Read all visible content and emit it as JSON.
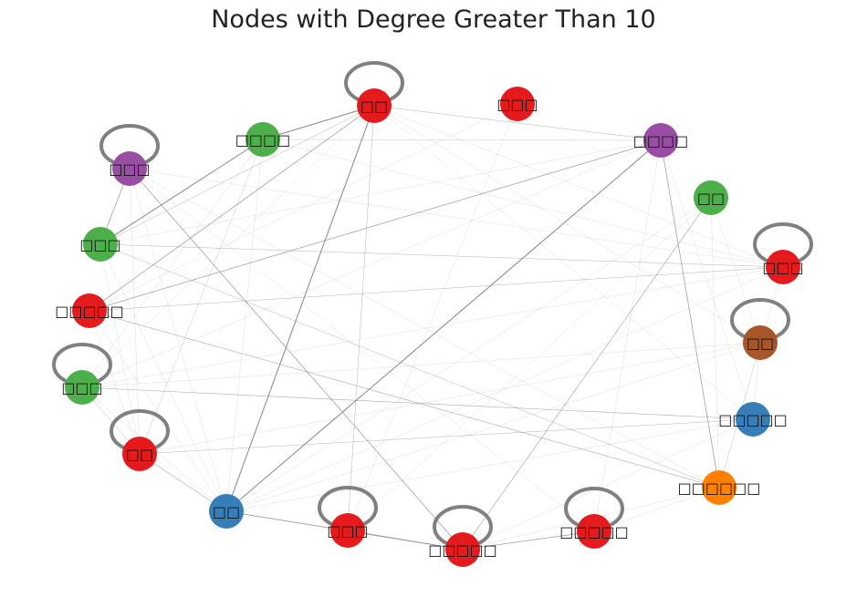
{
  "title": "Nodes with Degree Greater Than 10",
  "colors": {
    "red": "#e41a1c",
    "blue": "#377eb8",
    "green": "#4daf4a",
    "purple": "#984ea3",
    "orange": "#ff7f00",
    "brown": "#a65628",
    "edge": "#808080"
  },
  "nodes": [
    {
      "id": "n1",
      "label": "□□",
      "color": "red",
      "self_loop": true
    },
    {
      "id": "n2",
      "label": "□□□",
      "color": "red",
      "self_loop": false
    },
    {
      "id": "n3",
      "label": "□□□□",
      "color": "green",
      "self_loop": false
    },
    {
      "id": "n4",
      "label": "□□□□",
      "color": "purple",
      "self_loop": false
    },
    {
      "id": "n5",
      "label": "□□□",
      "color": "purple",
      "self_loop": true
    },
    {
      "id": "n6",
      "label": "□□",
      "color": "green",
      "self_loop": false
    },
    {
      "id": "n7",
      "label": "□□□",
      "color": "green",
      "self_loop": false
    },
    {
      "id": "n8",
      "label": "□□□",
      "color": "red",
      "self_loop": true
    },
    {
      "id": "n9",
      "label": "□□□□□",
      "color": "red",
      "self_loop": false
    },
    {
      "id": "n10",
      "label": "□□",
      "color": "brown",
      "self_loop": true
    },
    {
      "id": "n11",
      "label": "□□□",
      "color": "green",
      "self_loop": true
    },
    {
      "id": "n12",
      "label": "□□□□□",
      "color": "blue",
      "self_loop": false
    },
    {
      "id": "n13",
      "label": "□□",
      "color": "red",
      "self_loop": true
    },
    {
      "id": "n14",
      "label": "□□□□□□",
      "color": "orange",
      "self_loop": false
    },
    {
      "id": "n15",
      "label": "□□",
      "color": "blue",
      "self_loop": false
    },
    {
      "id": "n16",
      "label": "□□□",
      "color": "red",
      "self_loop": true
    },
    {
      "id": "n17",
      "label": "□□□□□",
      "color": "red",
      "self_loop": true
    },
    {
      "id": "n18",
      "label": "□□□□□",
      "color": "red",
      "self_loop": true
    }
  ],
  "edges": [
    {
      "source": "n1",
      "target": "n3",
      "weight": 2
    },
    {
      "source": "n1",
      "target": "n15",
      "weight": 2
    },
    {
      "source": "n1",
      "target": "n9",
      "weight": 1.5
    },
    {
      "source": "n1",
      "target": "n4",
      "weight": 1
    },
    {
      "source": "n1",
      "target": "n7",
      "weight": 1
    },
    {
      "source": "n1",
      "target": "n16",
      "weight": 1
    },
    {
      "source": "n1",
      "target": "n11",
      "weight": 0.6
    },
    {
      "source": "n1",
      "target": "n10",
      "weight": 0.5
    },
    {
      "source": "n1",
      "target": "n12",
      "weight": 0.5
    },
    {
      "source": "n1",
      "target": "n8",
      "weight": 0.5
    },
    {
      "source": "n2",
      "target": "n16",
      "weight": 0.5
    },
    {
      "source": "n2",
      "target": "n9",
      "weight": 0.5
    },
    {
      "source": "n3",
      "target": "n7",
      "weight": 2
    },
    {
      "source": "n3",
      "target": "n4",
      "weight": 0.8
    },
    {
      "source": "n3",
      "target": "n13",
      "weight": 0.8
    },
    {
      "source": "n3",
      "target": "n11",
      "weight": 0.6
    },
    {
      "source": "n3",
      "target": "n8",
      "weight": 0.5
    },
    {
      "source": "n3",
      "target": "n15",
      "weight": 0.6
    },
    {
      "source": "n4",
      "target": "n15",
      "weight": 2
    },
    {
      "source": "n4",
      "target": "n9",
      "weight": 1.5
    },
    {
      "source": "n4",
      "target": "n14",
      "weight": 1.5
    },
    {
      "source": "n4",
      "target": "n7",
      "weight": 0.6
    },
    {
      "source": "n4",
      "target": "n11",
      "weight": 0.6
    },
    {
      "source": "n4",
      "target": "n18",
      "weight": 0.6
    },
    {
      "source": "n4",
      "target": "n12",
      "weight": 0.5
    },
    {
      "source": "n5",
      "target": "n7",
      "weight": 1.5
    },
    {
      "source": "n5",
      "target": "n17",
      "weight": 1.5
    },
    {
      "source": "n5",
      "target": "n13",
      "weight": 0.6
    },
    {
      "source": "n5",
      "target": "n15",
      "weight": 0.6
    },
    {
      "source": "n5",
      "target": "n8",
      "weight": 0.5
    },
    {
      "source": "n5",
      "target": "n14",
      "weight": 0.5
    },
    {
      "source": "n5",
      "target": "n18",
      "weight": 0.5
    },
    {
      "source": "n6",
      "target": "n17",
      "weight": 1.2
    },
    {
      "source": "n6",
      "target": "n15",
      "weight": 0.6
    },
    {
      "source": "n6",
      "target": "n10",
      "weight": 0.5
    },
    {
      "source": "n6",
      "target": "n14",
      "weight": 0.5
    },
    {
      "source": "n7",
      "target": "n8",
      "weight": 1
    },
    {
      "source": "n7",
      "target": "n14",
      "weight": 1
    },
    {
      "source": "n7",
      "target": "n13",
      "weight": 0.6
    },
    {
      "source": "n7",
      "target": "n15",
      "weight": 0.6
    },
    {
      "source": "n8",
      "target": "n9",
      "weight": 1
    },
    {
      "source": "n8",
      "target": "n14",
      "weight": 0.6
    },
    {
      "source": "n8",
      "target": "n11",
      "weight": 0.5
    },
    {
      "source": "n8",
      "target": "n15",
      "weight": 0.5
    },
    {
      "source": "n9",
      "target": "n14",
      "weight": 1.2
    },
    {
      "source": "n9",
      "target": "n13",
      "weight": 0.6
    },
    {
      "source": "n9",
      "target": "n15",
      "weight": 0.6
    },
    {
      "source": "n10",
      "target": "n14",
      "weight": 0.6
    },
    {
      "source": "n10",
      "target": "n13",
      "weight": 0.6
    },
    {
      "source": "n10",
      "target": "n12",
      "weight": 0.5
    },
    {
      "source": "n10",
      "target": "n11",
      "weight": 0.5
    },
    {
      "source": "n11",
      "target": "n12",
      "weight": 1.2
    },
    {
      "source": "n11",
      "target": "n13",
      "weight": 1
    },
    {
      "source": "n11",
      "target": "n15",
      "weight": 0.6
    },
    {
      "source": "n12",
      "target": "n13",
      "weight": 1
    },
    {
      "source": "n12",
      "target": "n15",
      "weight": 0.6
    },
    {
      "source": "n12",
      "target": "n17",
      "weight": 0.5
    },
    {
      "source": "n13",
      "target": "n15",
      "weight": 1.2
    },
    {
      "source": "n14",
      "target": "n18",
      "weight": 0.6
    },
    {
      "source": "n14",
      "target": "n17",
      "weight": 0.6
    },
    {
      "source": "n15",
      "target": "n17",
      "weight": 1.5
    },
    {
      "source": "n15",
      "target": "n16",
      "weight": 0.8
    },
    {
      "source": "n15",
      "target": "n10",
      "weight": 0.6
    },
    {
      "source": "n16",
      "target": "n17",
      "weight": 1.5
    },
    {
      "source": "n16",
      "target": "n6",
      "weight": 0.5
    },
    {
      "source": "n17",
      "target": "n18",
      "weight": 1.5
    },
    {
      "source": "n17",
      "target": "n6",
      "weight": 0.5
    }
  ]
}
